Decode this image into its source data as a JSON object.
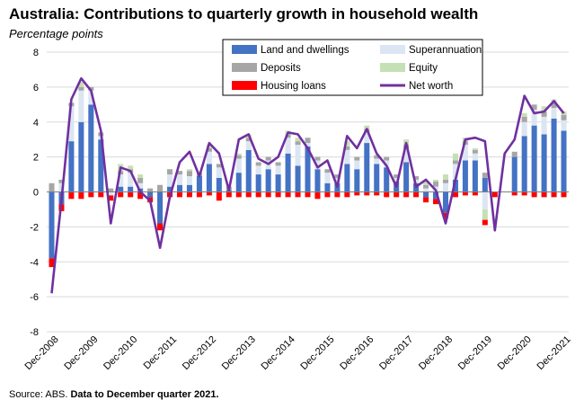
{
  "title": "Australia: Contributions to quarterly growth in household wealth",
  "subtitle": "Percentage points",
  "footer": {
    "source": "Source: ABS.",
    "note": "Data to December quarter 2021."
  },
  "colors": {
    "land": "#4472c4",
    "super": "#dce6f2",
    "deposits": "#a6a6a6",
    "equity": "#c5e0b4",
    "housing": "#ff0000",
    "networth": "#7030a0"
  },
  "chart_data": {
    "type": "bar",
    "stacked": true,
    "ylim": [
      -8,
      8
    ],
    "yticks": [
      -8,
      -6,
      -4,
      -2,
      0,
      2,
      4,
      6,
      8
    ],
    "x_tick_labels": [
      "Dec-2008",
      "Dec-2009",
      "Dec-2010",
      "Dec-2011",
      "Dec-2012",
      "Dec-2013",
      "Dec-2014",
      "Dec-2015",
      "Dec-2016",
      "Dec-2017",
      "Dec-2018",
      "Dec-2019",
      "Dec-2020",
      "Dec-2021"
    ],
    "categories": [
      "Dec-2008",
      "Mar-2009",
      "Jun-2009",
      "Sep-2009",
      "Dec-2009",
      "Mar-2010",
      "Jun-2010",
      "Sep-2010",
      "Dec-2010",
      "Mar-2011",
      "Jun-2011",
      "Sep-2011",
      "Dec-2011",
      "Mar-2012",
      "Jun-2012",
      "Sep-2012",
      "Dec-2012",
      "Mar-2013",
      "Jun-2013",
      "Sep-2013",
      "Dec-2013",
      "Mar-2014",
      "Jun-2014",
      "Sep-2014",
      "Dec-2014",
      "Mar-2015",
      "Jun-2015",
      "Sep-2015",
      "Dec-2015",
      "Mar-2016",
      "Jun-2016",
      "Sep-2016",
      "Dec-2016",
      "Mar-2017",
      "Jun-2017",
      "Sep-2017",
      "Dec-2017",
      "Mar-2018",
      "Jun-2018",
      "Sep-2018",
      "Dec-2018",
      "Mar-2019",
      "Jun-2019",
      "Sep-2019",
      "Dec-2019",
      "Mar-2020",
      "Jun-2020",
      "Sep-2020",
      "Dec-2020",
      "Mar-2021",
      "Jun-2021",
      "Sep-2021",
      "Dec-2021"
    ],
    "legend": {
      "land": "Land and dwellings",
      "super": "Superannuation",
      "deposits": "Deposits",
      "equity": "Equity",
      "housing": "Housing loans",
      "networth": "Net worth"
    },
    "series": [
      {
        "key": "land",
        "name": "Land and dwellings",
        "type": "bar",
        "values": [
          -3.8,
          -0.7,
          2.9,
          4.0,
          5.0,
          3.0,
          0.0,
          0.3,
          0.3,
          0.2,
          -0.3,
          -1.8,
          0.3,
          0.4,
          0.4,
          0.9,
          1.6,
          0.8,
          0.1,
          1.1,
          2.4,
          1.0,
          1.3,
          1.0,
          2.2,
          1.5,
          2.6,
          1.3,
          0.5,
          0.5,
          1.6,
          1.3,
          2.8,
          1.6,
          1.4,
          0.6,
          1.7,
          0.5,
          -0.3,
          -0.4,
          -1.2,
          0.7,
          1.8,
          1.8,
          0.8,
          0.0,
          0.0,
          2.0,
          3.2,
          3.8,
          3.3,
          4.2,
          3.5
        ]
      },
      {
        "key": "super",
        "name": "Superannuation",
        "type": "bar",
        "values": [
          0.0,
          0.5,
          2.0,
          1.8,
          0.8,
          0.2,
          -0.2,
          0.7,
          0.8,
          0.3,
          0.0,
          0.0,
          0.7,
          0.6,
          0.5,
          0.0,
          0.7,
          0.6,
          0.0,
          0.8,
          0.5,
          0.5,
          0.5,
          0.5,
          0.9,
          1.2,
          0.2,
          0.5,
          0.6,
          0.3,
          0.8,
          0.5,
          0.6,
          0.3,
          0.4,
          0.2,
          0.8,
          0.2,
          0.2,
          0.3,
          0.5,
          0.9,
          0.9,
          0.4,
          -1.0,
          0.0,
          0.0,
          0.0,
          0.8,
          0.9,
          1.0,
          0.6,
          0.6
        ]
      },
      {
        "key": "deposits",
        "name": "Deposits",
        "type": "bar",
        "values": [
          0.5,
          0.2,
          0.2,
          0.2,
          0.2,
          0.2,
          0.2,
          0.2,
          0.2,
          0.3,
          0.2,
          0.4,
          0.3,
          0.2,
          0.3,
          0.2,
          0.2,
          0.2,
          0.2,
          0.2,
          0.2,
          0.2,
          0.2,
          0.2,
          0.2,
          0.2,
          0.3,
          0.2,
          0.2,
          0.2,
          0.2,
          0.2,
          0.2,
          0.2,
          0.2,
          0.2,
          0.2,
          0.2,
          0.2,
          0.3,
          0.2,
          0.2,
          0.2,
          0.2,
          0.3,
          0.0,
          0.0,
          0.3,
          0.3,
          0.3,
          0.3,
          0.3,
          0.3
        ]
      },
      {
        "key": "equity",
        "name": "Equity",
        "type": "bar",
        "values": [
          0.0,
          0.0,
          0.0,
          0.3,
          0.0,
          0.0,
          0.0,
          0.4,
          0.2,
          0.2,
          0.0,
          0.0,
          0.0,
          0.0,
          0.1,
          0.0,
          0.2,
          0.0,
          0.0,
          0.1,
          0.2,
          0.0,
          0.0,
          0.0,
          0.2,
          0.2,
          0.0,
          0.0,
          0.0,
          0.0,
          0.3,
          0.0,
          0.2,
          0.0,
          0.0,
          0.0,
          0.3,
          0.0,
          0.2,
          0.1,
          0.3,
          0.4,
          0.2,
          0.1,
          -0.6,
          0.0,
          0.0,
          0.0,
          0.2,
          0.0,
          0.3,
          0.2,
          0.2
        ]
      },
      {
        "key": "housing",
        "name": "Housing loans",
        "type": "bar",
        "values": [
          -0.5,
          -0.4,
          -0.4,
          -0.4,
          -0.3,
          -0.3,
          -0.3,
          -0.3,
          -0.3,
          -0.4,
          -0.3,
          -0.4,
          -0.3,
          -0.3,
          -0.3,
          -0.3,
          -0.2,
          -0.5,
          -0.3,
          -0.3,
          -0.3,
          -0.3,
          -0.3,
          -0.3,
          -0.3,
          -0.3,
          -0.3,
          -0.4,
          -0.3,
          -0.3,
          -0.3,
          -0.2,
          -0.2,
          -0.2,
          -0.3,
          -0.3,
          -0.3,
          -0.3,
          -0.3,
          -0.3,
          -0.3,
          -0.3,
          -0.2,
          -0.2,
          -0.3,
          -0.3,
          0.0,
          -0.2,
          -0.2,
          -0.3,
          -0.3,
          -0.3,
          -0.3
        ]
      },
      {
        "key": "networth",
        "name": "Net worth",
        "type": "line",
        "values": [
          -5.8,
          -0.5,
          5.3,
          6.5,
          5.8,
          3.5,
          -1.8,
          1.4,
          1.2,
          0.0,
          -0.5,
          -3.2,
          -0.3,
          1.7,
          2.3,
          0.9,
          2.8,
          2.2,
          0.1,
          3.0,
          3.3,
          1.9,
          1.6,
          2.0,
          3.4,
          3.3,
          2.5,
          1.4,
          1.8,
          0.3,
          3.2,
          2.5,
          3.6,
          2.2,
          1.5,
          0.3,
          2.8,
          0.3,
          0.7,
          0.1,
          -1.8,
          0.7,
          3.0,
          3.1,
          2.9,
          -2.2,
          2.2,
          3.0,
          5.5,
          4.5,
          4.6,
          5.2,
          4.5
        ]
      }
    ]
  }
}
